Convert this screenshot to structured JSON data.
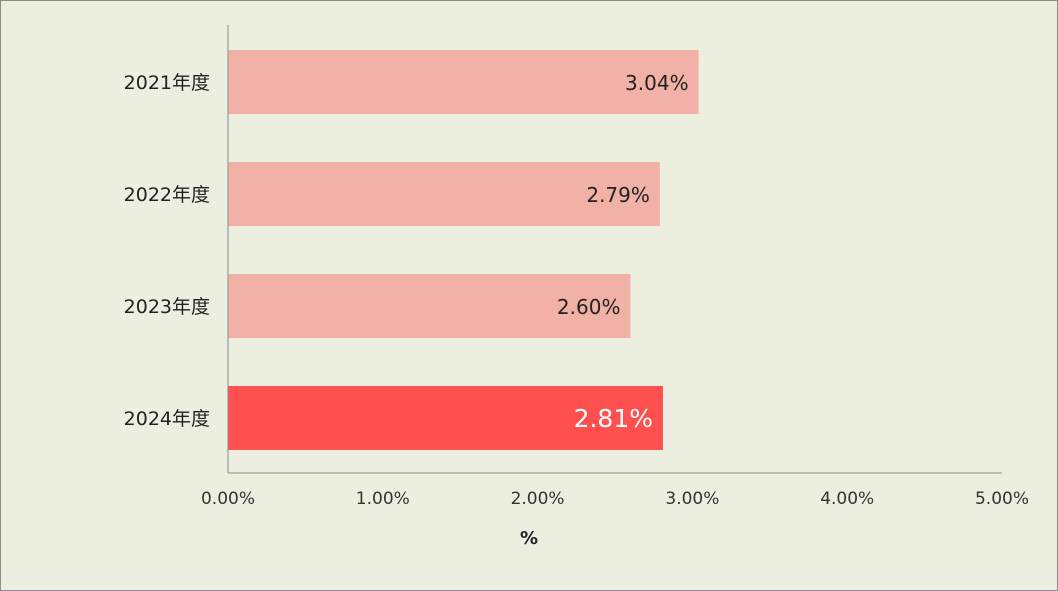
{
  "chart_data": {
    "type": "bar",
    "orientation": "horizontal",
    "categories": [
      "2021年度",
      "2022年度",
      "2023年度",
      "2024年度"
    ],
    "values": [
      3.04,
      2.79,
      2.6,
      2.81
    ],
    "value_labels": [
      "3.04%",
      "2.79%",
      "2.60%",
      "2.81%"
    ],
    "highlight_index": 3,
    "xlabel": "%",
    "ylabel": "",
    "title": "",
    "xlim": [
      0,
      5
    ],
    "xticks": [
      0,
      1,
      2,
      3,
      4,
      5
    ],
    "xtick_labels": [
      "0.00%",
      "1.00%",
      "2.00%",
      "3.00%",
      "4.00%",
      "5.00%"
    ],
    "grid": false,
    "legend": "none"
  },
  "colors": {
    "background": "#ecefe0",
    "bar": "#f2b1a6",
    "bar_highlight": "#ff5050",
    "axis": "#8c8c8c"
  }
}
